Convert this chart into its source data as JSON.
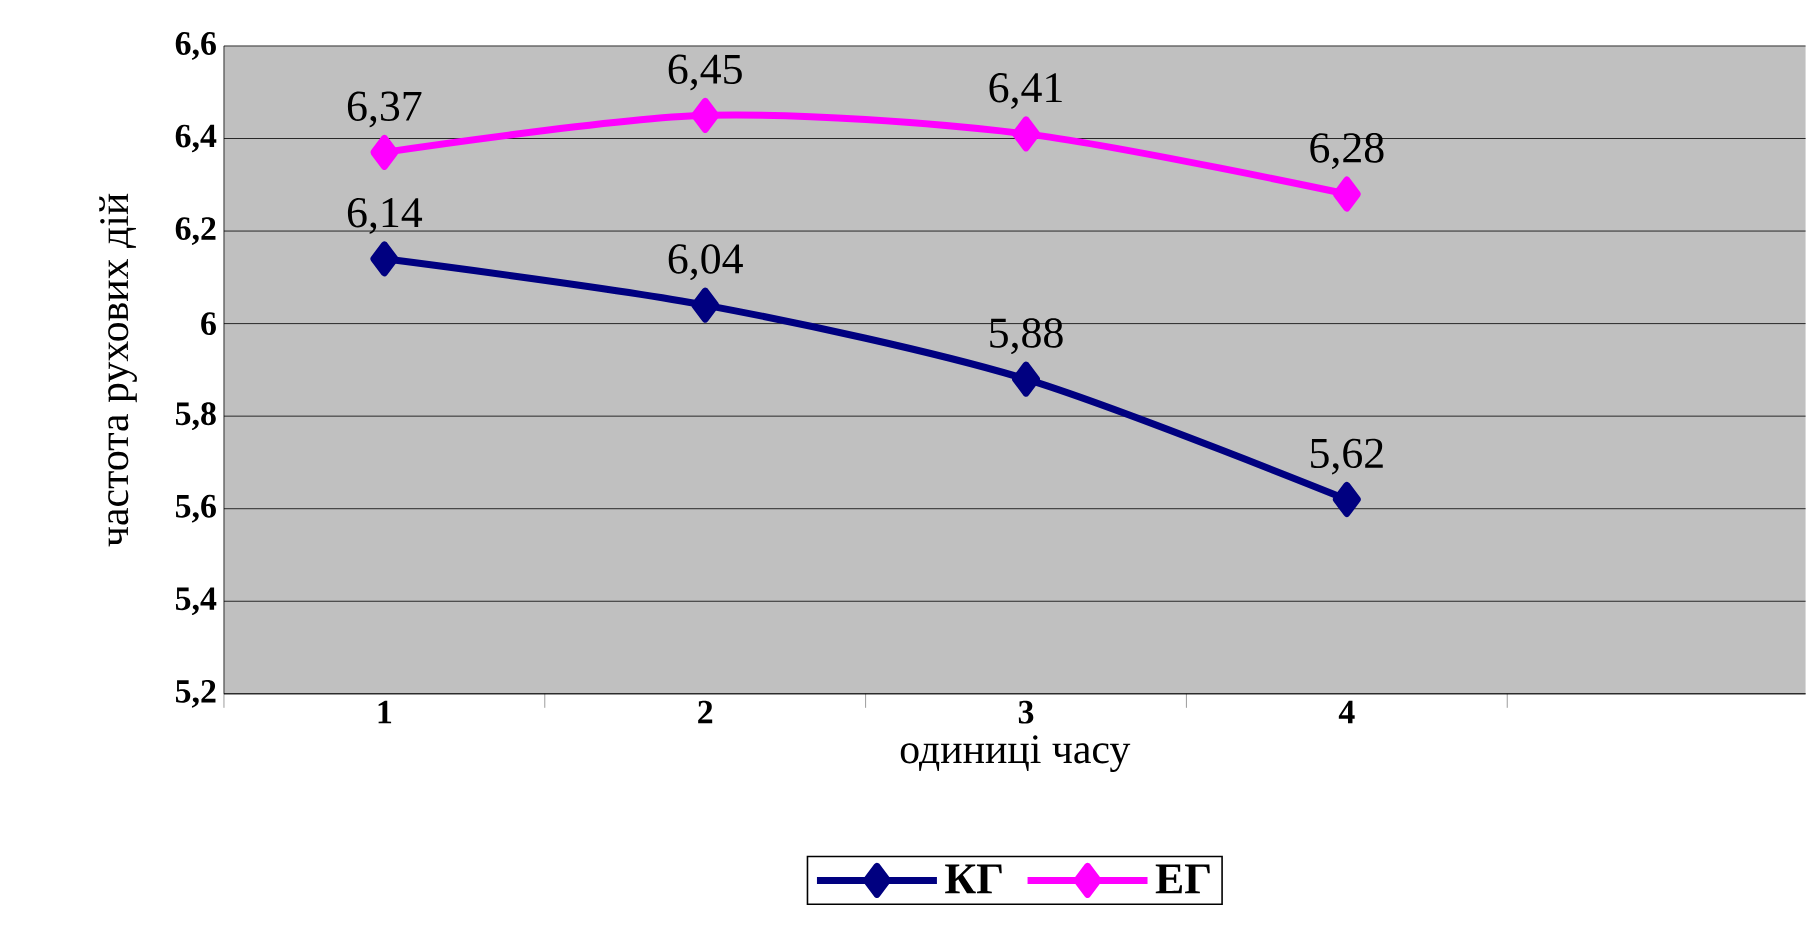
{
  "chart_data": {
    "type": "line",
    "xlabel": "одиниці часу",
    "ylabel": "частота рухових дій",
    "categories": [
      "1",
      "2",
      "3",
      "4",
      null
    ],
    "series": [
      {
        "name": "КГ",
        "color": "#000080",
        "values": [
          6.14,
          6.04,
          5.88,
          5.62,
          null
        ],
        "value_labels": [
          "6,14",
          "6,04",
          "5,88",
          "5,62",
          null
        ]
      },
      {
        "name": "ЕГ",
        "color": "#ff00ff",
        "values": [
          6.37,
          6.45,
          6.41,
          6.28,
          null
        ],
        "value_labels": [
          "6,37",
          "6,45",
          "6,41",
          "6,28",
          null
        ]
      }
    ],
    "ylim": [
      5.2,
      6.6
    ],
    "yticks": [
      {
        "value": 5.2,
        "label": "5,2"
      },
      {
        "value": 5.4,
        "label": "5,4"
      },
      {
        "value": 5.6,
        "label": "5,6"
      },
      {
        "value": 5.8,
        "label": "5,8"
      },
      6,
      {
        "value": 6.2,
        "label": "6,2"
      },
      {
        "value": 6.4,
        "label": "6,4"
      },
      {
        "value": 6.6,
        "label": "6,6"
      }
    ],
    "grid": "y",
    "legend": "bottom",
    "marker": "diamond",
    "line_style": "solid"
  }
}
